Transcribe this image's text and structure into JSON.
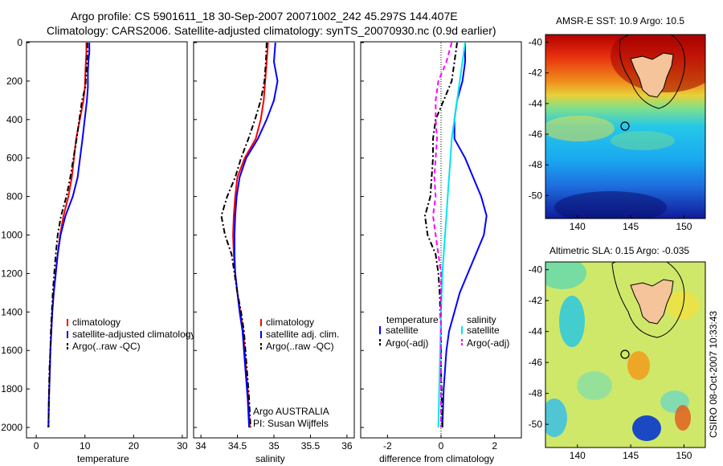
{
  "header": {
    "line1": "Argo profile: CS 5901611_18 30-Sep-2007 20071002_242 45.297S 144.407E",
    "line2": "Climatology: CARS2006. Satellite-adjusted climatology: synTS_20070930.nc (0.9d earlier)"
  },
  "side_note": "CSIRO 08-Oct-2007 10:33:43",
  "colors": {
    "climatology": "#ff0000",
    "satellite": "#0000ff",
    "argo": "#000000",
    "salinity_satellite": "#00e5ee",
    "salinity_argo": "#ff00ff"
  },
  "chart_data": [
    {
      "type": "line",
      "xlabel": "temperature",
      "ylabel": "",
      "xlim": [
        -2,
        31
      ],
      "ylim": [
        2050,
        0
      ],
      "xticks": [
        "0",
        "10",
        "20",
        "30"
      ],
      "yticks": [
        "0",
        "200",
        "400",
        "600",
        "800",
        "1000",
        "1200",
        "1400",
        "1600",
        "1800",
        "2000"
      ],
      "legend": [
        "climatology",
        "satellite-adjusted climatology",
        "Argo(..raw -QC)"
      ],
      "series": [
        {
          "name": "climatology",
          "style": "solid",
          "x": [
            10.3,
            10.3,
            10.2,
            10.1,
            10.0,
            9.7,
            8.2,
            7.3,
            6.6,
            5.6,
            4.9,
            4.4,
            4.0,
            3.6,
            3.3,
            3.1,
            2.9,
            2.8,
            2.6,
            2.5
          ],
          "y": [
            0,
            50,
            100,
            150,
            230,
            300,
            500,
            700,
            800,
            900,
            1000,
            1100,
            1200,
            1300,
            1400,
            1500,
            1600,
            1700,
            1850,
            2000
          ]
        },
        {
          "name": "satellite-adjusted climatology",
          "style": "solid",
          "x": [
            10.9,
            10.9,
            10.7,
            10.6,
            10.6,
            10.4,
            9.5,
            8.5,
            7.5,
            6.0,
            5.0,
            4.4,
            4.0,
            3.6,
            3.3,
            3.1,
            2.9,
            2.8,
            2.6,
            2.5
          ],
          "y": [
            0,
            50,
            100,
            150,
            230,
            300,
            500,
            700,
            800,
            900,
            1000,
            1100,
            1200,
            1300,
            1400,
            1500,
            1600,
            1700,
            1850,
            2000
          ]
        },
        {
          "name": "Argo(..raw -QC)",
          "style": "dashdot",
          "x": [
            10.5,
            10.5,
            10.4,
            10.3,
            10.1,
            9.4,
            8.3,
            7.0,
            6.2,
            5.1,
            4.4,
            4.0,
            3.7,
            3.4,
            3.2,
            3.0,
            2.9,
            2.7,
            2.6,
            2.5
          ],
          "y": [
            0,
            50,
            100,
            150,
            230,
            300,
            500,
            700,
            800,
            900,
            1000,
            1100,
            1200,
            1300,
            1400,
            1500,
            1600,
            1700,
            1850,
            2000
          ]
        }
      ]
    },
    {
      "type": "line",
      "xlabel": "salinity",
      "ylabel": "",
      "xlim": [
        33.9,
        36.1
      ],
      "ylim": [
        2050,
        0
      ],
      "xticks": [
        "34",
        "34.5",
        "35",
        "35.5",
        "36"
      ],
      "legend": [
        "climatology",
        "satellite adj. clim.",
        "Argo(..raw -QC)"
      ],
      "series": [
        {
          "name": "climatology",
          "style": "solid",
          "x": [
            34.92,
            34.9,
            34.88,
            34.86,
            34.82,
            34.75,
            34.6,
            34.5,
            34.47,
            34.45,
            34.44,
            34.45,
            34.47,
            34.5,
            34.54,
            34.58,
            34.62,
            34.65,
            34.67
          ],
          "y": [
            0,
            100,
            200,
            300,
            400,
            500,
            600,
            700,
            800,
            900,
            1000,
            1100,
            1200,
            1300,
            1400,
            1500,
            1700,
            1850,
            2000
          ]
        },
        {
          "name": "satellite adj. clim.",
          "style": "solid",
          "x": [
            35.02,
            35.0,
            35.05,
            35.0,
            34.9,
            34.78,
            34.62,
            34.53,
            34.49,
            34.47,
            34.46,
            34.46,
            34.47,
            34.5,
            34.53,
            34.57,
            34.61,
            34.64,
            34.66
          ],
          "y": [
            0,
            100,
            200,
            300,
            400,
            500,
            600,
            700,
            800,
            900,
            1000,
            1100,
            1200,
            1300,
            1400,
            1500,
            1700,
            1850,
            2000
          ]
        },
        {
          "name": "Argo(..raw -QC)",
          "style": "dashdot",
          "x": [
            34.9,
            34.89,
            34.87,
            34.82,
            34.74,
            34.65,
            34.55,
            34.47,
            34.36,
            34.28,
            34.33,
            34.42,
            34.46,
            34.5,
            34.55,
            34.59,
            34.63,
            34.66,
            34.68
          ],
          "y": [
            0,
            100,
            200,
            300,
            400,
            500,
            600,
            700,
            800,
            900,
            1000,
            1100,
            1200,
            1300,
            1400,
            1500,
            1700,
            1850,
            2000
          ]
        }
      ],
      "annotations": [
        "Argo AUSTRALIA",
        "PI: Susan Wijffels"
      ]
    },
    {
      "type": "line",
      "xlabel": "difference from climatology",
      "ylabel": "",
      "xlim": [
        -3,
        3
      ],
      "ylim": [
        2050,
        0
      ],
      "xticks": [
        "-2",
        "0",
        "2"
      ],
      "legend_groups": [
        {
          "title": "temperature",
          "entries": [
            "satellite",
            "Argo(-adj)"
          ]
        },
        {
          "title": "salinity",
          "entries": [
            "satellite",
            "Argo(-adj)"
          ]
        }
      ],
      "series": [
        {
          "name": "temperature satellite",
          "style": "solid",
          "x": [
            0.9,
            0.9,
            0.8,
            0.6,
            0.5,
            0.5,
            0.9,
            1.2,
            1.5,
            1.7,
            1.6,
            1.3,
            1.0,
            0.7,
            0.5,
            0.3,
            0.2,
            0.1,
            0.05
          ],
          "y": [
            0,
            100,
            200,
            300,
            400,
            500,
            600,
            700,
            800,
            900,
            1000,
            1100,
            1200,
            1300,
            1400,
            1500,
            1600,
            1800,
            2000
          ]
        },
        {
          "name": "temperature Argo(-adj)",
          "style": "dashdot",
          "x": [
            0.6,
            0.5,
            0.4,
            0.1,
            -0.2,
            -0.3,
            -0.3,
            -0.35,
            -0.4,
            -0.6,
            -0.5,
            -0.2,
            -0.1,
            -0.05,
            0.0,
            0.0,
            0.05
          ],
          "y": [
            0,
            100,
            200,
            300,
            400,
            500,
            600,
            700,
            800,
            900,
            1000,
            1100,
            1200,
            1300,
            1500,
            1700,
            2000
          ]
        },
        {
          "name": "salinity satellite",
          "style": "solid",
          "x": [
            0.9,
            0.8,
            0.7,
            0.6,
            0.5,
            0.4,
            0.35,
            0.3,
            0.25,
            0.2,
            0.15,
            0.1,
            0.05,
            0.0,
            -0.05,
            -0.1
          ],
          "y": [
            0,
            100,
            200,
            300,
            400,
            500,
            600,
            700,
            800,
            900,
            1000,
            1100,
            1200,
            1400,
            1700,
            2000
          ]
        },
        {
          "name": "salinity Argo(-adj)",
          "style": "dashed",
          "x": [
            0.4,
            0.2,
            -0.1,
            -0.2,
            -0.2,
            -0.15,
            -0.2,
            -0.25,
            -0.2,
            -0.3,
            -0.2,
            -0.1,
            0.0,
            0.0,
            0.0
          ],
          "y": [
            0,
            100,
            200,
            300,
            400,
            500,
            600,
            700,
            800,
            900,
            1000,
            1100,
            1200,
            1500,
            2000
          ]
        }
      ]
    },
    {
      "type": "heatmap",
      "title": "AMSR-E SST: 10.9 Argo: 10.5",
      "xlim": [
        137,
        152
      ],
      "ylim": [
        -51.5,
        -39.5
      ],
      "xticks": [
        "140",
        "145",
        "150"
      ],
      "yticks": [
        "-40",
        "-42",
        "-44",
        "-46",
        "-48",
        "-50"
      ],
      "profile_location": {
        "lon": 144.407,
        "lat": -45.297
      }
    },
    {
      "type": "heatmap",
      "title": "Altimetric SLA: 0.15 Argo: -0.035",
      "xlim": [
        137,
        152
      ],
      "ylim": [
        -51.5,
        -39.5
      ],
      "xticks": [
        "140",
        "145",
        "150"
      ],
      "yticks": [
        "-40",
        "-42",
        "-44",
        "-46",
        "-48",
        "-50"
      ],
      "profile_location": {
        "lon": 144.407,
        "lat": -45.297
      }
    }
  ]
}
